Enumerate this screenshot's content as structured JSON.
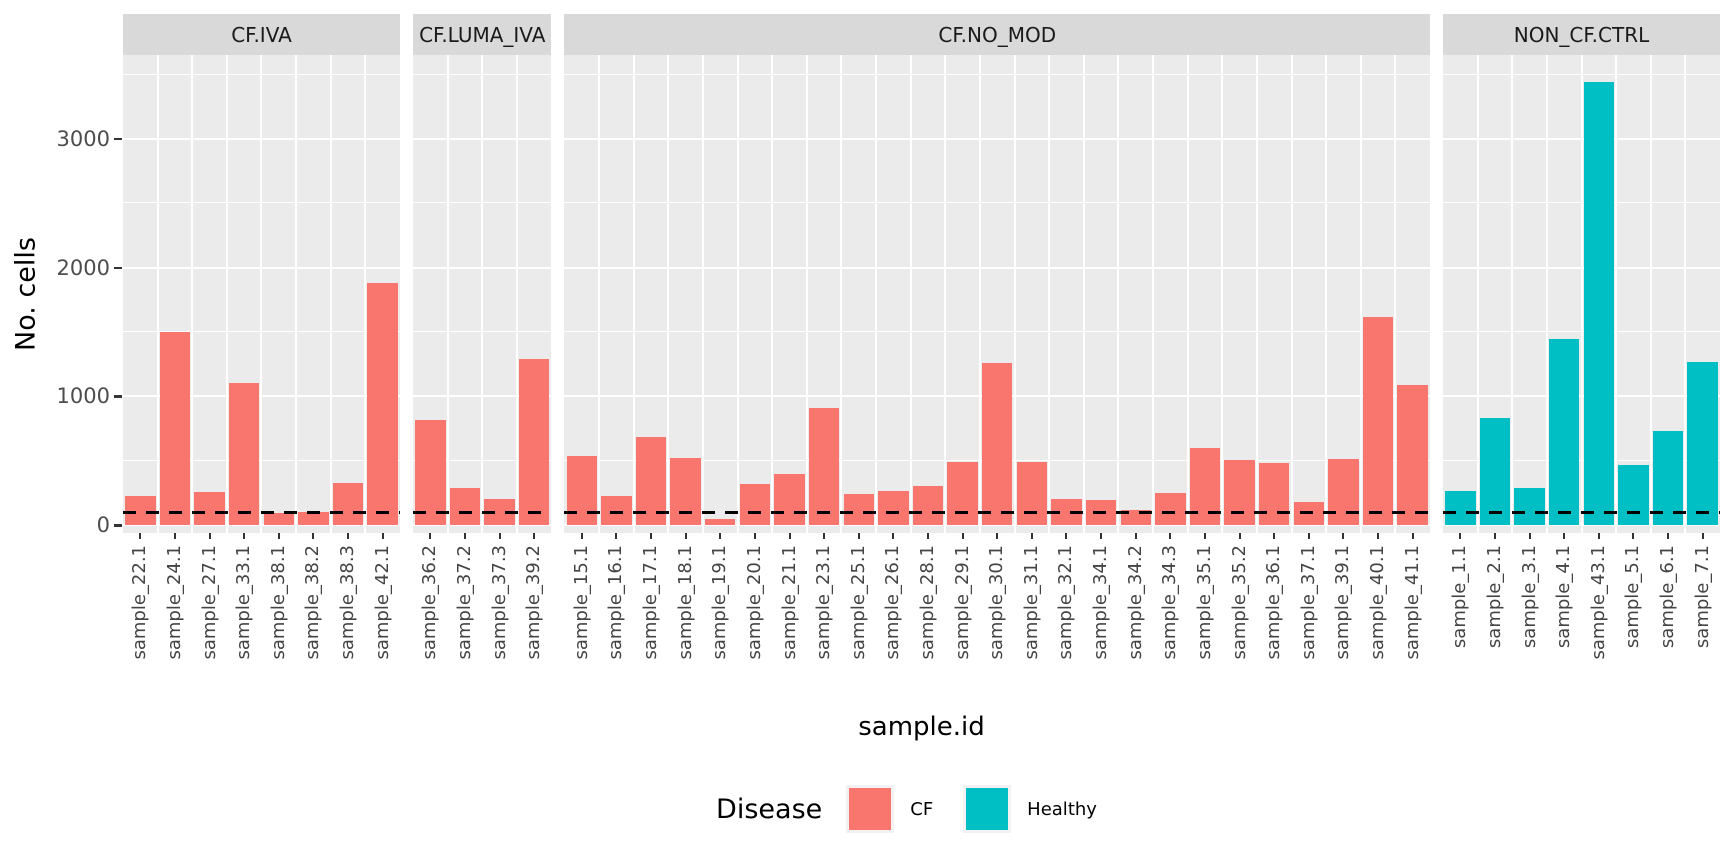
{
  "figure": {
    "y_axis_title": "No. cells",
    "x_axis_title": "sample.id"
  },
  "legend": {
    "title": "Disease",
    "entries": [
      {
        "label": "CF",
        "color": "#F8766D"
      },
      {
        "label": "Healthy",
        "color": "#00BFC4"
      }
    ]
  },
  "chart_data": {
    "type": "bar",
    "title": "",
    "xlabel": "sample.id",
    "ylabel": "No. cells",
    "ylim": [
      0,
      3650
    ],
    "y_ticks": [
      0,
      1000,
      2000,
      3000
    ],
    "y_tick_labels": [
      "0",
      "1000",
      "2000",
      "3000"
    ],
    "minor_gridlines": [
      500,
      1500,
      2500,
      3500
    ],
    "grid": "on",
    "legend_position": "bottom",
    "reference_line": {
      "y": 100,
      "style": "dashed",
      "color": "#000000"
    },
    "series_colors": {
      "CF": "#F8766D",
      "Healthy": "#00BFC4"
    },
    "theme": {
      "panel_bg": "#EBEBEB",
      "strip_bg": "#D9D9D9",
      "grid_color": "#FFFFFF",
      "axis_text_color": "#4D4D4D"
    },
    "facets": [
      {
        "label": "CF.IVA",
        "disease": "CF",
        "categories": [
          "sample_22.1",
          "sample_24.1",
          "sample_27.1",
          "sample_33.1",
          "sample_38.1",
          "sample_38.2",
          "sample_38.3",
          "sample_42.1"
        ],
        "values": [
          225,
          1500,
          255,
          1100,
          90,
          100,
          330,
          1880
        ]
      },
      {
        "label": "CF.LUMA_IVA",
        "disease": "CF",
        "categories": [
          "sample_36.2",
          "sample_37.2",
          "sample_37.3",
          "sample_39.2"
        ],
        "values": [
          815,
          285,
          200,
          1290
        ]
      },
      {
        "label": "CF.NO_MOD",
        "disease": "CF",
        "categories": [
          "sample_15.1",
          "sample_16.1",
          "sample_17.1",
          "sample_18.1",
          "sample_19.1",
          "sample_20.1",
          "sample_21.1",
          "sample_23.1",
          "sample_25.1",
          "sample_26.1",
          "sample_28.1",
          "sample_29.1",
          "sample_30.1",
          "sample_31.1",
          "sample_32.1",
          "sample_34.1",
          "sample_34.2",
          "sample_34.3",
          "sample_35.1",
          "sample_35.2",
          "sample_36.1",
          "sample_37.1",
          "sample_39.1",
          "sample_40.1",
          "sample_41.1"
        ],
        "values": [
          535,
          225,
          685,
          520,
          50,
          320,
          395,
          910,
          240,
          265,
          305,
          490,
          1260,
          490,
          200,
          195,
          120,
          250,
          600,
          505,
          480,
          180,
          515,
          1615,
          1090
        ]
      },
      {
        "label": "NON_CF.CTRL",
        "disease": "Healthy",
        "categories": [
          "sample_1.1",
          "sample_2.1",
          "sample_3.1",
          "sample_4.1",
          "sample_43.1",
          "sample_5.1",
          "sample_6.1",
          "sample_7.1"
        ],
        "values": [
          265,
          830,
          285,
          1445,
          3440,
          465,
          730,
          1265
        ]
      }
    ]
  }
}
